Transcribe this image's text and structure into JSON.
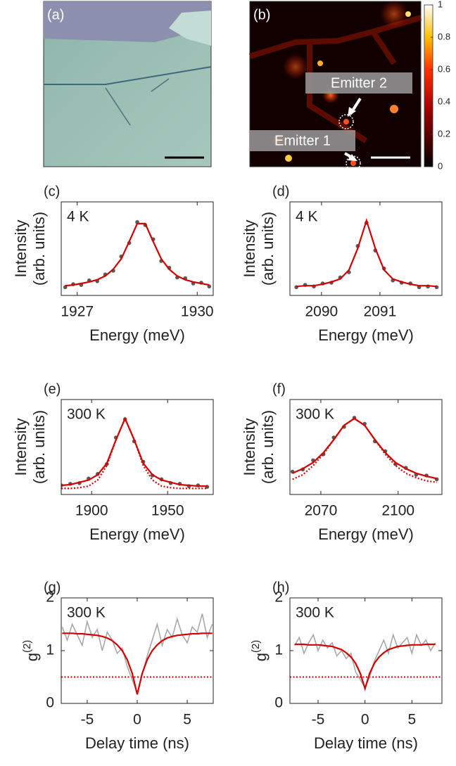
{
  "images": [
    {
      "label": "(a)"
    },
    {
      "label": "(b)",
      "annotations": [
        "Emitter 2",
        "Emitter 1"
      ],
      "colorbar": {
        "lim": [
          0,
          1
        ],
        "ticks": [
          0,
          0.2,
          0.4,
          0.6,
          0.8,
          1
        ]
      }
    }
  ],
  "chart_data": [
    {
      "type": "scatter",
      "panel": "(c)",
      "annotation": "4 K",
      "xlabel": "Energy (meV)",
      "ylabel": [
        "Intensity",
        "(arb. units)"
      ],
      "xlim": [
        1926.6,
        1930.4
      ],
      "xticks": [
        1927,
        1930
      ],
      "ylim": [
        0,
        1.25
      ],
      "x": [
        1926.7,
        1926.9,
        1927.1,
        1927.3,
        1927.5,
        1927.7,
        1927.9,
        1928.1,
        1928.3,
        1928.5,
        1928.7,
        1928.9,
        1929.1,
        1929.3,
        1929.5,
        1929.7,
        1929.9,
        1930.1,
        1930.3
      ],
      "series": [
        {
          "name": "data",
          "mark": "dots",
          "color": "#5a5a5a",
          "values": [
            0.11,
            0.15,
            0.14,
            0.2,
            0.19,
            0.28,
            0.33,
            0.52,
            0.7,
            0.98,
            0.94,
            0.75,
            0.46,
            0.37,
            0.24,
            0.23,
            0.16,
            0.17,
            0.12
          ]
        },
        {
          "name": "fit",
          "mark": "line",
          "color": "#d40000",
          "values": [
            0.13,
            0.14,
            0.16,
            0.18,
            0.21,
            0.26,
            0.35,
            0.49,
            0.72,
            0.96,
            0.96,
            0.72,
            0.49,
            0.35,
            0.26,
            0.21,
            0.18,
            0.16,
            0.14
          ]
        }
      ]
    },
    {
      "type": "scatter",
      "panel": "(d)",
      "annotation": "4 K",
      "xlabel": "Energy (meV)",
      "ylabel": [
        "Intensity",
        "(arb. units)"
      ],
      "xlim": [
        2089.46,
        2092.06
      ],
      "xticks": [
        2090,
        2091
      ],
      "ylim": [
        0,
        1.25
      ],
      "x": [
        2089.57,
        2089.72,
        2089.87,
        2090.02,
        2090.17,
        2090.32,
        2090.47,
        2090.62,
        2090.77,
        2090.92,
        2091.07,
        2091.22,
        2091.37,
        2091.52,
        2091.67,
        2091.82,
        2091.97
      ],
      "series": [
        {
          "name": "data",
          "mark": "dots",
          "color": "#5a5a5a",
          "values": [
            0.11,
            0.14,
            0.12,
            0.16,
            0.17,
            0.24,
            0.31,
            0.66,
            0.97,
            0.6,
            0.36,
            0.2,
            0.17,
            0.16,
            0.11,
            0.12,
            0.11
          ]
        },
        {
          "name": "fit",
          "mark": "line",
          "color": "#d40000",
          "values": [
            0.12,
            0.13,
            0.13,
            0.15,
            0.18,
            0.22,
            0.34,
            0.63,
            1.0,
            0.63,
            0.34,
            0.22,
            0.18,
            0.15,
            0.13,
            0.13,
            0.12
          ]
        }
      ]
    },
    {
      "type": "scatter",
      "panel": "(e)",
      "annotation": "300 K",
      "xlabel": "Energy (meV)",
      "ylabel": [
        "Intensity",
        "(arb. units)"
      ],
      "xlim": [
        1880,
        1980
      ],
      "xticks": [
        1900,
        1950
      ],
      "ylim": [
        0,
        1.25
      ],
      "x": [
        1880,
        1886,
        1892,
        1898,
        1904,
        1910,
        1916,
        1922,
        1928,
        1934,
        1940,
        1946,
        1952,
        1958,
        1964,
        1970,
        1976
      ],
      "series": [
        {
          "name": "data",
          "mark": "dots",
          "color": "#5a5a5a",
          "values": [
            0.12,
            0.14,
            0.15,
            0.21,
            0.27,
            0.4,
            0.75,
            0.99,
            0.7,
            0.43,
            0.25,
            0.2,
            0.15,
            0.14,
            0.11,
            0.12,
            0.1
          ]
        },
        {
          "name": "fit",
          "mark": "line",
          "color": "#d40000",
          "values": [
            0.12,
            0.13,
            0.16,
            0.19,
            0.26,
            0.41,
            0.72,
            1.0,
            0.72,
            0.41,
            0.26,
            0.19,
            0.16,
            0.13,
            0.12,
            0.11,
            0.11
          ]
        },
        {
          "name": "fit2",
          "mark": "dotted",
          "color": "#d40000",
          "values": [
            0.08,
            0.08,
            0.09,
            0.11,
            0.19,
            0.38,
            0.72,
            1.0,
            0.72,
            0.38,
            0.19,
            0.11,
            0.09,
            0.08,
            0.08,
            0.08,
            0.08
          ]
        }
      ]
    },
    {
      "type": "scatter",
      "panel": "(f)",
      "annotation": "300 K",
      "xlabel": "Energy (meV)",
      "ylabel": [
        "Intensity",
        "(arb. units)"
      ],
      "xlim": [
        2058,
        2117
      ],
      "xticks": [
        2070,
        2100
      ],
      "ylim": [
        0,
        1.25
      ],
      "x": [
        2059,
        2063,
        2067,
        2071,
        2075,
        2079,
        2083,
        2087,
        2091,
        2095,
        2099,
        2103,
        2107,
        2111,
        2115
      ],
      "series": [
        {
          "name": "data",
          "mark": "dots",
          "color": "#5a5a5a",
          "values": [
            0.3,
            0.33,
            0.45,
            0.53,
            0.75,
            0.89,
            1.01,
            0.93,
            0.7,
            0.57,
            0.4,
            0.35,
            0.26,
            0.25,
            0.2
          ]
        },
        {
          "name": "fit",
          "mark": "line",
          "color": "#d40000",
          "values": [
            0.28,
            0.34,
            0.42,
            0.55,
            0.72,
            0.91,
            1.0,
            0.91,
            0.72,
            0.55,
            0.42,
            0.34,
            0.28,
            0.24,
            0.21
          ]
        },
        {
          "name": "fit2",
          "mark": "dotted",
          "color": "#d40000",
          "values": [
            0.2,
            0.26,
            0.38,
            0.53,
            0.72,
            0.91,
            1.0,
            0.91,
            0.72,
            0.53,
            0.38,
            0.28,
            0.22,
            0.18,
            0.16
          ]
        }
      ]
    },
    {
      "type": "line",
      "panel": "(g)",
      "annotation": "300 K",
      "xlabel": "Delay time (ns)",
      "ylabel": "g",
      "ylabel_sup": "(2)",
      "xlim": [
        -7.6,
        7.6
      ],
      "xticks": [
        -5,
        0,
        5
      ],
      "ylim": [
        0,
        2
      ],
      "yticks": [
        0,
        1,
        2
      ],
      "threshold": 0.5,
      "x": [
        -7.5,
        -7,
        -6.5,
        -6,
        -5.5,
        -5,
        -4.5,
        -4,
        -3.5,
        -3,
        -2.5,
        -2,
        -1.5,
        -1,
        -0.5,
        0,
        0.5,
        1,
        1.5,
        2,
        2.5,
        3,
        3.5,
        4,
        4.5,
        5,
        5.5,
        6,
        6.5,
        7,
        7.5
      ],
      "series": [
        {
          "name": "data",
          "mark": "line",
          "color": "#a8a8a8",
          "values": [
            1.45,
            1.2,
            1.5,
            1.3,
            1.1,
            1.55,
            1.25,
            1.4,
            1.0,
            1.35,
            1.2,
            0.95,
            1.05,
            0.7,
            0.45,
            0.2,
            0.55,
            0.9,
            1.2,
            1.5,
            1.1,
            1.4,
            1.25,
            1.6,
            1.3,
            1.15,
            1.45,
            1.35,
            1.7,
            1.25,
            1.5
          ]
        },
        {
          "name": "fit",
          "mark": "line",
          "color": "#d40000",
          "values": [
            1.33,
            1.33,
            1.33,
            1.32,
            1.32,
            1.31,
            1.3,
            1.29,
            1.27,
            1.24,
            1.19,
            1.11,
            1.0,
            0.83,
            0.57,
            0.17,
            0.57,
            0.83,
            1.0,
            1.11,
            1.19,
            1.24,
            1.27,
            1.29,
            1.3,
            1.31,
            1.32,
            1.32,
            1.33,
            1.33,
            1.33
          ]
        }
      ]
    },
    {
      "type": "line",
      "panel": "(h)",
      "annotation": "300 K",
      "xlabel": "Delay time (ns)",
      "ylabel": "g",
      "ylabel_sup": "(2)",
      "xlim": [
        -8,
        8.2
      ],
      "xticks": [
        -5,
        0,
        5
      ],
      "ylim": [
        0,
        2
      ],
      "yticks": [
        0,
        1,
        2
      ],
      "threshold": 0.5,
      "x": [
        -7.5,
        -7,
        -6.5,
        -6,
        -5.5,
        -5,
        -4.5,
        -4,
        -3.5,
        -3,
        -2.5,
        -2,
        -1.5,
        -1,
        -0.5,
        0,
        0.5,
        1,
        1.5,
        2,
        2.5,
        3,
        3.5,
        4,
        4.5,
        5,
        5.5,
        6,
        6.5,
        7,
        7.5
      ],
      "series": [
        {
          "name": "data",
          "mark": "line",
          "color": "#a8a8a8",
          "values": [
            1.1,
            1.25,
            0.95,
            1.15,
            1.3,
            1.0,
            1.2,
            1.05,
            1.15,
            0.9,
            1.0,
            0.85,
            0.95,
            0.6,
            0.45,
            0.3,
            0.5,
            0.8,
            1.0,
            1.2,
            0.95,
            1.3,
            1.05,
            1.15,
            1.25,
            0.95,
            1.3,
            1.1,
            1.2,
            1.0,
            1.15
          ]
        },
        {
          "name": "fit",
          "mark": "line",
          "color": "#d40000",
          "values": [
            1.12,
            1.12,
            1.12,
            1.11,
            1.11,
            1.11,
            1.1,
            1.09,
            1.08,
            1.05,
            1.02,
            0.96,
            0.88,
            0.76,
            0.57,
            0.28,
            0.57,
            0.76,
            0.88,
            0.96,
            1.02,
            1.05,
            1.08,
            1.09,
            1.1,
            1.11,
            1.11,
            1.11,
            1.12,
            1.12,
            1.12
          ]
        }
      ]
    }
  ]
}
